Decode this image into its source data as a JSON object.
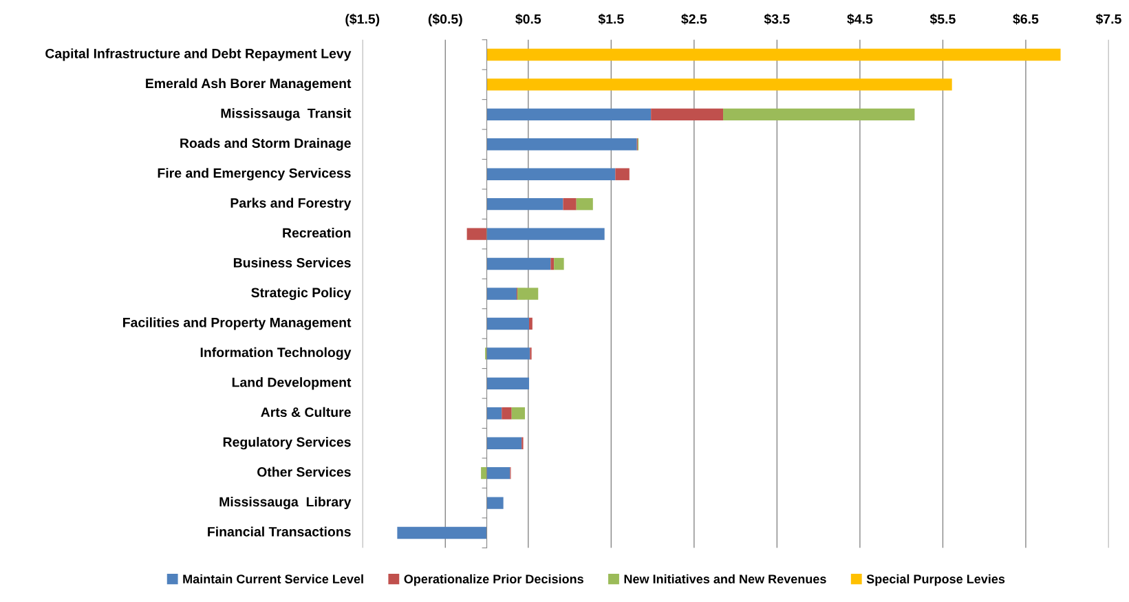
{
  "chart_data": {
    "type": "bar",
    "orientation": "horizontal",
    "stacked": true,
    "categories": [
      "Capital Infrastructure and Debt Repayment Levy",
      "Emerald Ash Borer Management",
      "Mississauga  Transit",
      "Roads and Storm Drainage",
      "Fire and Emergency Servicess",
      "Parks and Forestry",
      "Recreation",
      "Business Services",
      "Strategic Policy",
      "Facilities and Property Management",
      "Information Technology",
      "Land Development",
      "Arts & Culture",
      "Regulatory Services",
      "Other Services",
      "Mississauga  Library",
      "Financial Transactions"
    ],
    "series": [
      {
        "name": "Maintain Current Service Level",
        "color": "#4f81bd",
        "values": [
          0,
          0,
          1.98,
          1.81,
          1.55,
          0.92,
          1.42,
          0.77,
          0.36,
          0.51,
          0.52,
          0.51,
          0.18,
          0.42,
          0.28,
          0.2,
          -1.08
        ]
      },
      {
        "name": "Operationalize Prior Decisions",
        "color": "#c0504d",
        "values": [
          0,
          0,
          0.87,
          0.01,
          0.17,
          0.16,
          -0.24,
          0.04,
          0.01,
          0.04,
          0.02,
          0,
          0.12,
          0.02,
          0.01,
          0,
          0
        ]
      },
      {
        "name": "New Initiatives and New Revenues",
        "color": "#9bbb59",
        "values": [
          0,
          0,
          2.31,
          0.01,
          0,
          0.2,
          0,
          0.12,
          0.25,
          0,
          -0.02,
          0,
          0.16,
          0,
          -0.07,
          0,
          0
        ]
      },
      {
        "name": "Special Purpose Levies",
        "color": "#ffc000",
        "values": [
          6.92,
          5.61,
          0,
          0,
          0,
          0,
          0,
          0,
          0,
          0,
          0,
          0,
          0,
          0,
          0,
          0,
          0
        ]
      }
    ],
    "xlim": [
      -1.5,
      7.5
    ],
    "xticks": [
      {
        "value": -1.5,
        "label": "($1.5)"
      },
      {
        "value": -0.5,
        "label": "($0.5)"
      },
      {
        "value": 0.5,
        "label": "$0.5"
      },
      {
        "value": 1.5,
        "label": "$1.5"
      },
      {
        "value": 2.5,
        "label": "$2.5"
      },
      {
        "value": 3.5,
        "label": "$3.5"
      },
      {
        "value": 4.5,
        "label": "$4.5"
      },
      {
        "value": 5.5,
        "label": "$5.5"
      },
      {
        "value": 6.5,
        "label": "$6.5"
      },
      {
        "value": 7.5,
        "label": "$7.5"
      }
    ],
    "grid": "x",
    "legend": "bottom"
  }
}
